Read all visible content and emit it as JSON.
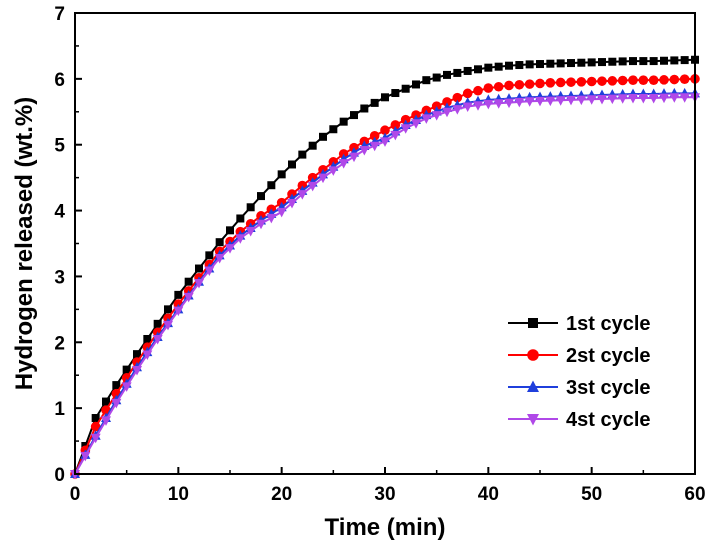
{
  "chart_data": {
    "type": "line",
    "xlabel": "Time (min)",
    "ylabel": "Hydrogen released (wt.%)",
    "xlim": [
      0,
      60
    ],
    "ylim": [
      0,
      7
    ],
    "xticks": [
      0,
      10,
      20,
      30,
      40,
      50,
      60
    ],
    "yticks": [
      0,
      1,
      2,
      3,
      4,
      5,
      6,
      7
    ],
    "grid": false,
    "legend_position": "bottom-right",
    "x": [
      0,
      2,
      4,
      6,
      8,
      10,
      12,
      14,
      16,
      18,
      20,
      22,
      24,
      26,
      28,
      30,
      32,
      34,
      36,
      38,
      40,
      42,
      44,
      46,
      48,
      50,
      52,
      54,
      56,
      58,
      60
    ],
    "series": [
      {
        "name": "1st cycle",
        "color": "#000000",
        "marker": "square",
        "values": [
          0.0,
          0.85,
          1.35,
          1.82,
          2.28,
          2.72,
          3.12,
          3.52,
          3.88,
          4.22,
          4.55,
          4.85,
          5.12,
          5.35,
          5.55,
          5.72,
          5.85,
          5.98,
          6.06,
          6.12,
          6.17,
          6.2,
          6.22,
          6.23,
          6.24,
          6.25,
          6.26,
          6.27,
          6.27,
          6.28,
          6.29
        ]
      },
      {
        "name": "2st cycle",
        "color": "#ff0000",
        "marker": "circle",
        "values": [
          0.0,
          0.72,
          1.22,
          1.7,
          2.15,
          2.58,
          2.98,
          3.38,
          3.68,
          3.92,
          4.12,
          4.38,
          4.62,
          4.86,
          5.05,
          5.22,
          5.38,
          5.52,
          5.65,
          5.78,
          5.86,
          5.9,
          5.92,
          5.94,
          5.95,
          5.96,
          5.97,
          5.98,
          5.98,
          5.99,
          6.0
        ]
      },
      {
        "name": "3st cycle",
        "color": "#1f3fdc",
        "marker": "triangle-up",
        "values": [
          0.0,
          0.58,
          1.12,
          1.62,
          2.08,
          2.5,
          2.92,
          3.32,
          3.62,
          3.85,
          4.05,
          4.3,
          4.55,
          4.78,
          4.98,
          5.1,
          5.3,
          5.45,
          5.56,
          5.64,
          5.68,
          5.7,
          5.72,
          5.73,
          5.74,
          5.75,
          5.76,
          5.77,
          5.77,
          5.78,
          5.78
        ]
      },
      {
        "name": "4st cycle",
        "color": "#b048e8",
        "marker": "triangle-down",
        "values": [
          0.0,
          0.55,
          1.08,
          1.58,
          2.05,
          2.48,
          2.9,
          3.28,
          3.58,
          3.8,
          3.98,
          4.25,
          4.5,
          4.72,
          4.92,
          5.05,
          5.25,
          5.4,
          5.5,
          5.58,
          5.62,
          5.64,
          5.66,
          5.67,
          5.68,
          5.69,
          5.7,
          5.71,
          5.71,
          5.72,
          5.72
        ]
      }
    ]
  }
}
